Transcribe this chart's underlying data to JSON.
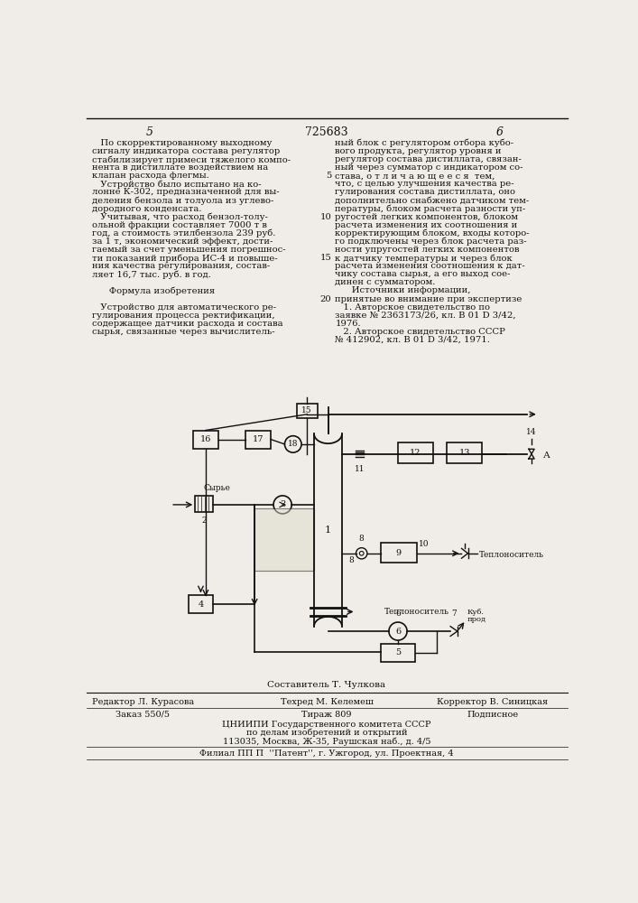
{
  "page_number_left": "5",
  "page_number_center": "725683",
  "page_number_right": "6",
  "left_column_text": [
    "   По скорректированному выходному",
    "сигналу индикатора состава регулятор",
    "стабилизирует примеси тяжелого компо-",
    "нента в дистиллате воздействием на",
    "клапан расхода флегмы.",
    "   Устройство было испытано на ко-",
    "лонне К-302, предназначенной для вы-",
    "деления бензола и толуола из углево-",
    "дородного конденсата.",
    "   Учитывая, что расход бензол-толу-",
    "ольной фракции составляет 7000 т в",
    "год, а стоимость этилбензола 239 руб.",
    "за 1 т, экономический эффект, дости-",
    "гаемый за счет уменьшения погрешнос-",
    "ти показаний прибора ИС-4 и повыше-",
    "ния качества регулирования, состав-",
    "ляет 16,7 тыс. руб. в год.",
    "",
    "      Формула изобретения",
    "",
    "   Устройство для автоматического ре-",
    "гулирования процесса ректификации,",
    "содержащее датчики расхода и состава",
    "сырья, связанные через вычислитель-"
  ],
  "right_column_text": [
    "ный блок с регулятором отбора кубо-",
    "вого продукта, регулятор уровня и",
    "регулятор состава дистиллата, связан-",
    "ный через сумматор с индикатором со-",
    "става, о т л и ч а ю щ е е с я  тем,",
    "что, с целью улучшения качества ре-",
    "гулирования состава дистиллата, оно",
    "дополнительно снабжено датчиком тем-",
    "пературы, блоком расчета разности уп-",
    "ругостей легких компонентов, блоком",
    "расчета изменения их соотношения и",
    "корректирующим блоком, входы которо-",
    "го подключены через блок расчета раз-",
    "ности упругостей легких компонентов",
    "к датчику температуры и через блок",
    "расчета изменения соотношения к дат-",
    "чику состава сырья, а его выход сое-",
    "динен с сумматором.",
    "      Источники информации,",
    "принятые во внимание при экспертизе",
    "   1. Авторское свидетельство по",
    "заявке № 2363173/26, кл. В 01 D 3/42,",
    "1976.",
    "   2. Авторское свидетельство СССР",
    "№ 412902, кл. В 01 D 3/42, 1971."
  ],
  "line_num_map": {
    "4": "5",
    "9": "10",
    "14": "15",
    "19": "20"
  },
  "footer_editor": "Редактор Л. Курасова",
  "footer_composer": "Составитель Т. Чулкова",
  "footer_tech": "Техред М. Келемеш",
  "footer_corrector": "Корректор В. Синицкая",
  "footer_order": "Заказ 550/5",
  "footer_circulation": "Тираж 809",
  "footer_subscription": "Подписное",
  "footer_cniipi": "ЦНИИПИ Государственного комитета СССР",
  "footer_affairs": "по делам изобретений и открытий",
  "footer_address": "113035, Москва, Ж-35, Раушская наб., д. 4/5",
  "footer_branch": "Филиал ПП П  ''Патент'', г. Ужгород, ул. Проектная, 4",
  "bg_color": "#f0ede8",
  "text_color": "#111111"
}
